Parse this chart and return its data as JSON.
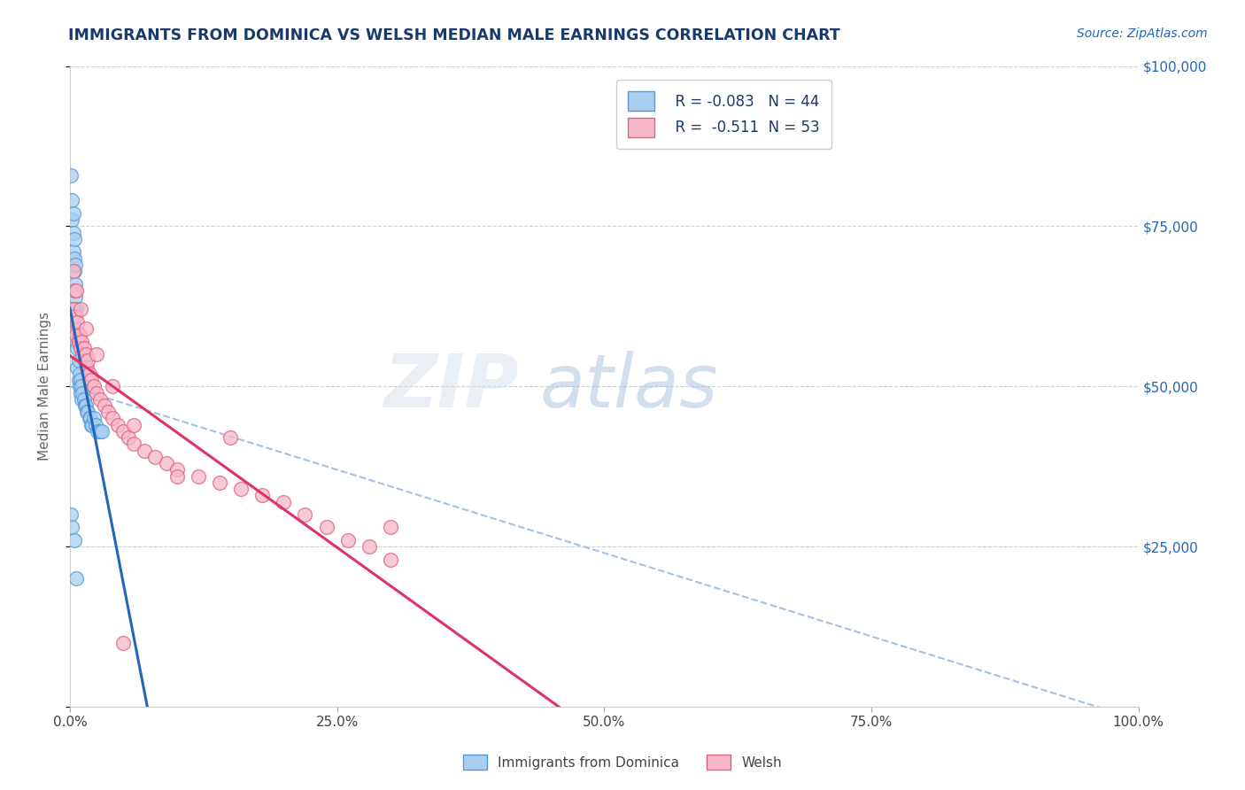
{
  "title": "IMMIGRANTS FROM DOMINICA VS WELSH MEDIAN MALE EARNINGS CORRELATION CHART",
  "source": "Source: ZipAtlas.com",
  "ylabel": "Median Male Earnings",
  "xlabel": "",
  "xlim": [
    0,
    1.0
  ],
  "ylim": [
    0,
    100000
  ],
  "xticks": [
    0.0,
    0.25,
    0.5,
    0.75,
    1.0
  ],
  "xticklabels": [
    "0.0%",
    "25.0%",
    "50.0%",
    "75.0%",
    "100.0%"
  ],
  "yticks": [
    0,
    25000,
    50000,
    75000,
    100000
  ],
  "yticklabels": [
    "",
    "$25,000",
    "$50,000",
    "$75,000",
    "$100,000"
  ],
  "legend_r1": "R = -0.083",
  "legend_n1": "N = 44",
  "legend_r2": "R =  -0.511",
  "legend_n2": "N = 53",
  "blue_fill": "#a8cff0",
  "blue_edge": "#5599dd",
  "pink_fill": "#f5b8c8",
  "pink_edge": "#e06080",
  "blue_line_color": "#2266bb",
  "pink_line_color": "#dd3366",
  "dash_line_color": "#99bbdd",
  "title_color": "#1a3a6a",
  "source_color": "#2266bb",
  "axis_label_color": "#666666",
  "right_tick_color": "#2266bb",
  "watermark_color": "#c5d8ee",
  "blue_scatter_x": [
    0.001,
    0.002,
    0.002,
    0.003,
    0.003,
    0.003,
    0.004,
    0.004,
    0.004,
    0.005,
    0.005,
    0.005,
    0.006,
    0.006,
    0.006,
    0.007,
    0.007,
    0.008,
    0.008,
    0.009,
    0.009,
    0.01,
    0.01,
    0.011,
    0.011,
    0.012,
    0.013,
    0.014,
    0.015,
    0.016,
    0.017,
    0.018,
    0.019,
    0.02,
    0.021,
    0.022,
    0.024,
    0.026,
    0.028,
    0.03,
    0.001,
    0.002,
    0.004,
    0.006
  ],
  "blue_scatter_y": [
    83000,
    79000,
    76000,
    77000,
    74000,
    71000,
    73000,
    70000,
    68000,
    69000,
    66000,
    64000,
    62000,
    59000,
    57000,
    56000,
    53000,
    54000,
    51000,
    52000,
    50000,
    51000,
    49000,
    50000,
    48000,
    49000,
    48000,
    47000,
    47000,
    46000,
    46000,
    45000,
    45000,
    44000,
    44000,
    45000,
    44000,
    43000,
    43000,
    43000,
    30000,
    28000,
    26000,
    20000
  ],
  "pink_scatter_x": [
    0.002,
    0.003,
    0.004,
    0.005,
    0.006,
    0.007,
    0.008,
    0.009,
    0.01,
    0.011,
    0.012,
    0.013,
    0.014,
    0.015,
    0.016,
    0.017,
    0.018,
    0.02,
    0.022,
    0.025,
    0.028,
    0.032,
    0.036,
    0.04,
    0.045,
    0.05,
    0.055,
    0.06,
    0.07,
    0.08,
    0.09,
    0.1,
    0.12,
    0.14,
    0.16,
    0.18,
    0.2,
    0.22,
    0.24,
    0.26,
    0.28,
    0.3,
    0.003,
    0.006,
    0.01,
    0.015,
    0.025,
    0.04,
    0.06,
    0.1,
    0.3,
    0.05,
    0.15
  ],
  "pink_scatter_y": [
    58000,
    62000,
    65000,
    61000,
    58000,
    60000,
    57000,
    58000,
    56000,
    57000,
    55000,
    56000,
    54000,
    55000,
    53000,
    54000,
    52000,
    51000,
    50000,
    49000,
    48000,
    47000,
    46000,
    45000,
    44000,
    43000,
    42000,
    41000,
    40000,
    39000,
    38000,
    37000,
    36000,
    35000,
    34000,
    33000,
    32000,
    30000,
    28000,
    26000,
    25000,
    23000,
    68000,
    65000,
    62000,
    59000,
    55000,
    50000,
    44000,
    36000,
    28000,
    10000,
    42000
  ]
}
